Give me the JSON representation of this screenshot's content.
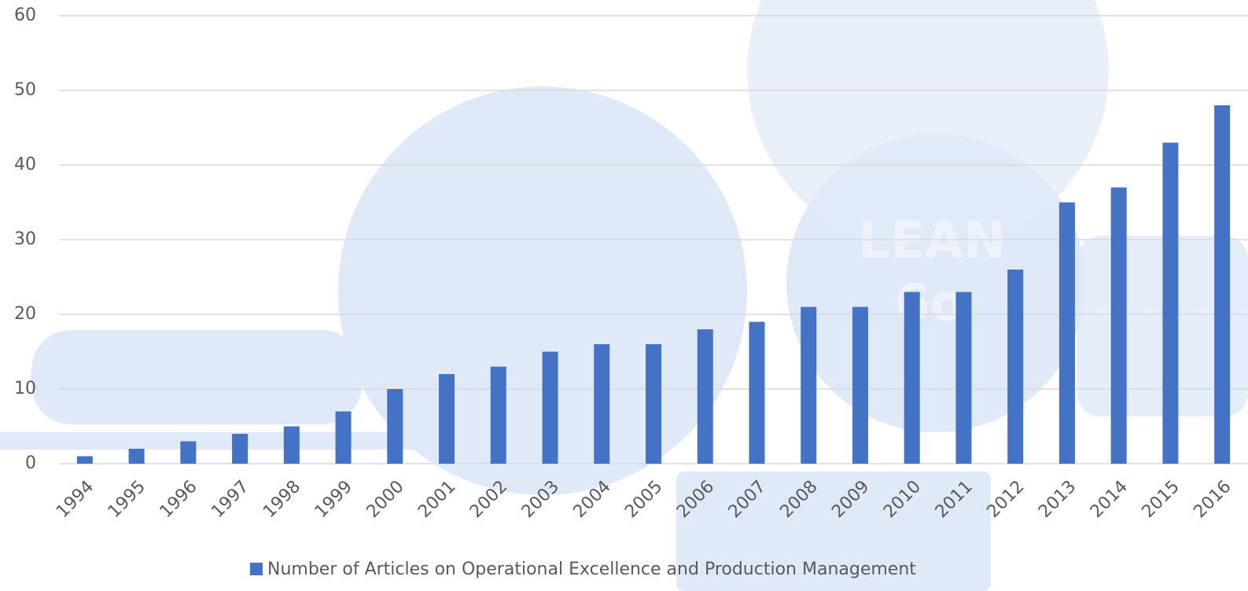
{
  "chart_data": {
    "type": "bar",
    "categories": [
      "1994",
      "1995",
      "1996",
      "1997",
      "1998",
      "1999",
      "2000",
      "2001",
      "2002",
      "2003",
      "2004",
      "2005",
      "2006",
      "2007",
      "2008",
      "2009",
      "2010",
      "2011",
      "2012",
      "2013",
      "2014",
      "2015",
      "2016"
    ],
    "series": [
      {
        "name": "Number of Articles on Operational Excellence and Production Management",
        "color": "#4472c4",
        "values": [
          1,
          2,
          3,
          4,
          5,
          7,
          10,
          12,
          13,
          15,
          16,
          16,
          18,
          19,
          21,
          21,
          23,
          23,
          26,
          35,
          37,
          43,
          48
        ]
      }
    ],
    "ylim": [
      0,
      60
    ],
    "yticks": [
      0,
      10,
      20,
      30,
      40,
      50,
      60
    ],
    "grid": true,
    "legend": "bottom",
    "background_labels": [
      "LEAN",
      "6σ"
    ]
  }
}
